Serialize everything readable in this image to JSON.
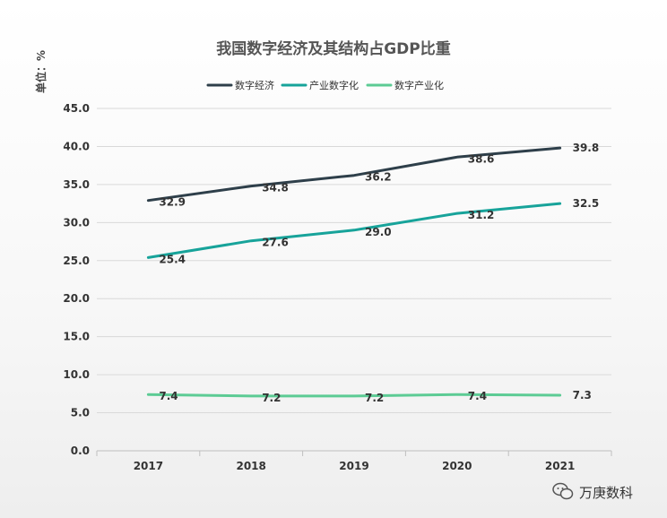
{
  "chart_data": {
    "type": "line",
    "title": "我国数字经济及其结构占GDP比重",
    "unit_label": "单位：%",
    "categories": [
      "2017",
      "2018",
      "2019",
      "2020",
      "2021"
    ],
    "ylim": [
      0,
      45
    ],
    "yticks": [
      "0.0",
      "5.0",
      "10.0",
      "15.0",
      "20.0",
      "25.0",
      "30.0",
      "35.0",
      "40.0",
      "45.0"
    ],
    "ytick_values": [
      0,
      5,
      10,
      15,
      20,
      25,
      30,
      35,
      40,
      45
    ],
    "grid": true,
    "legend_position": "top-center",
    "series": [
      {
        "name": "数字经济",
        "color": "#2e3f4a",
        "values": [
          32.9,
          34.8,
          36.2,
          38.6,
          39.8
        ],
        "labels": [
          "32.9",
          "34.8",
          "36.2",
          "38.6",
          "39.8"
        ]
      },
      {
        "name": "产业数字化",
        "color": "#17a39a",
        "values": [
          25.4,
          27.6,
          29.0,
          31.2,
          32.5
        ],
        "labels": [
          "25.4",
          "27.6",
          "29.0",
          "31.2",
          "32.5"
        ]
      },
      {
        "name": "数字产业化",
        "color": "#5ccb94",
        "values": [
          7.4,
          7.2,
          7.2,
          7.4,
          7.3
        ],
        "labels": [
          "7.4",
          "7.2",
          "7.2",
          "7.4",
          "7.3"
        ]
      }
    ]
  },
  "watermark": {
    "text": "万庚数科",
    "icon": "wechat-icon"
  }
}
